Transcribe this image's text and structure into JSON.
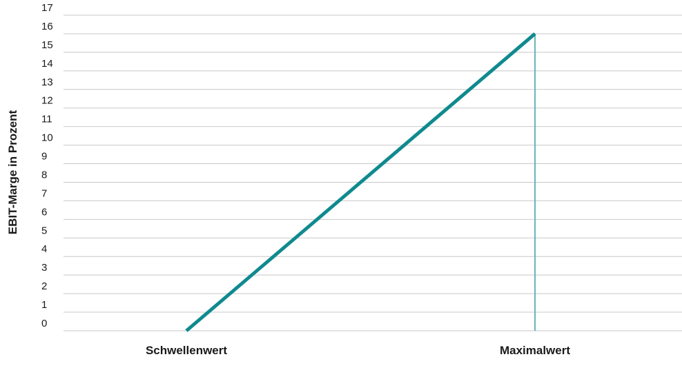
{
  "chart_data": {
    "type": "line",
    "title": "",
    "xlabel": "",
    "ylabel": "EBIT-Marge in Prozent",
    "ylim": [
      0,
      17
    ],
    "yticks": [
      0,
      1,
      2,
      3,
      4,
      5,
      6,
      7,
      8,
      9,
      10,
      11,
      12,
      13,
      14,
      15,
      16,
      17
    ],
    "categories": [
      "Schwellenwert",
      "Maximalwert"
    ],
    "series": [
      {
        "values": [
          0,
          16
        ]
      }
    ],
    "marker_line": {
      "category": "Maximalwert",
      "from": 0,
      "to": 16
    },
    "grid": true,
    "colors": {
      "line": "#0f8a8f",
      "marker_line": "#66b5ba",
      "grid": "#c8c8c8",
      "text": "#1a1a1a"
    }
  }
}
